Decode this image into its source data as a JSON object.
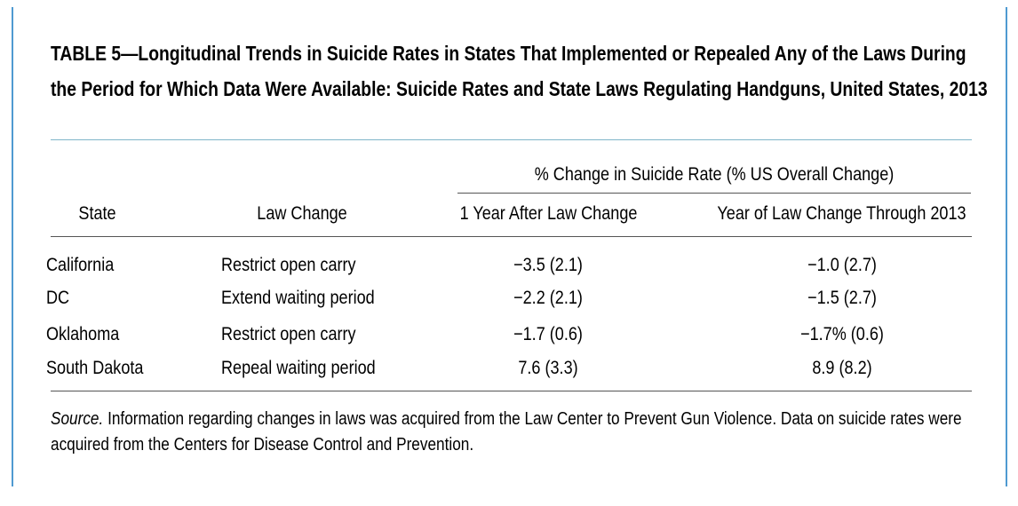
{
  "title": "TABLE 5—Longitudinal Trends in Suicide Rates in States That Implemented or Repealed Any of the Laws During the Period for Which Data Were Available: Suicide Rates and State Laws Regulating Handguns, United States, 2013",
  "table": {
    "group_header": "% Change in Suicide Rate (% US Overall Change)",
    "columns": [
      "State",
      "Law Change",
      "1 Year After Law Change",
      "Year of Law Change Through 2013"
    ],
    "rows": [
      {
        "state": "California",
        "law": "Restrict open carry",
        "one_year": "−3.5 (2.1)",
        "through_2013": "−1.0 (2.7)"
      },
      {
        "state": "DC",
        "law": "Extend waiting period",
        "one_year": "−2.2 (2.1)",
        "through_2013": "−1.5 (2.7)"
      },
      {
        "state": "Oklahoma",
        "law": "Restrict open carry",
        "one_year": "−1.7 (0.6)",
        "through_2013": "−1.7% (0.6)"
      },
      {
        "state": "South Dakota",
        "law": "Repeal waiting period",
        "one_year": "7.6 (3.3)",
        "through_2013": "8.9 (8.2)"
      }
    ]
  },
  "source": {
    "label": "Source.",
    "text": " Information regarding changes in laws was acquired from the Law Center to Prevent Gun Violence. Data on suicide rates were acquired from the Centers for Disease Control and Prevention."
  },
  "colors": {
    "frame": "#4f9ad1",
    "title_rule": "#7fb6c9",
    "table_rule": "#555555"
  }
}
